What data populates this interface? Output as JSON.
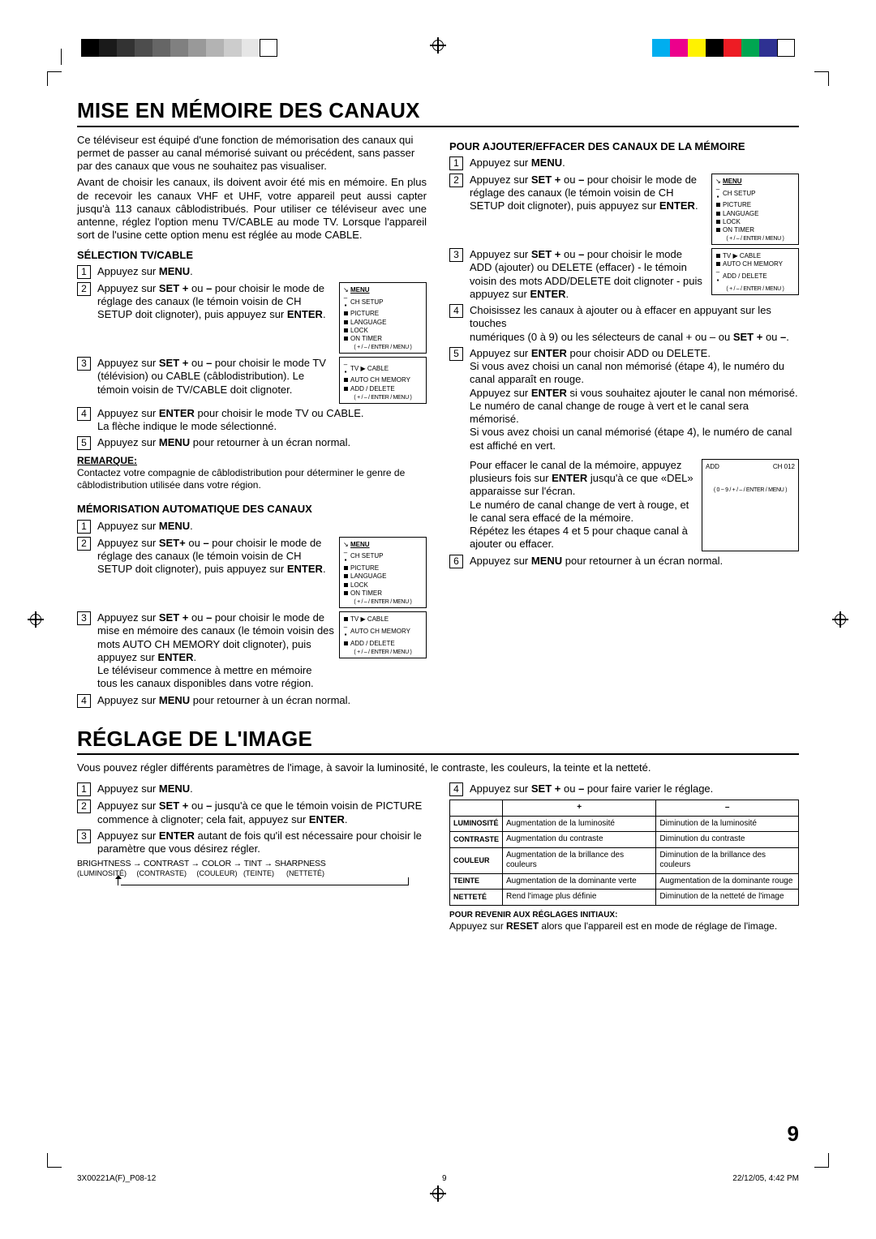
{
  "marks": {
    "grey_swatches": [
      "#000000",
      "#1a1a1a",
      "#333333",
      "#4d4d4d",
      "#666666",
      "#808080",
      "#999999",
      "#b3b3b3",
      "#cccccc",
      "#e6e6e6",
      "#ffffff"
    ],
    "color_swatches": [
      "#00aeef",
      "#ec008c",
      "#fff200",
      "#000000",
      "#ed1c24",
      "#00a651",
      "#2e3192",
      "#ffffff"
    ]
  },
  "section1": {
    "title": "MISE EN MÉMOIRE DES CANAUX",
    "intro": "Ce téléviseur est équipé d'une fonction de mémorisation des canaux qui permet de passer au canal mémorisé suivant ou précédent, sans passer par des canaux que vous ne souhaitez pas visualiser.",
    "intro2": "Avant de choisir les canaux, ils doivent avoir été mis en mémoire. En plus de recevoir les canaux VHF et UHF, votre appareil peut aussi capter jusqu'à 113 canaux câblodistribués. Pour utiliser ce téléviseur avec une antenne, réglez l'option menu TV/CABLE au mode TV. Lorsque l'appareil sort de l'usine cette option menu est réglée au mode CABLE.",
    "tvcable": {
      "heading": "SÉLECTION TV/CABLE",
      "s1": "Appuyez sur ",
      "s1b": "MENU",
      "s1c": ".",
      "s2a": "Appuyez sur ",
      "s2b": "SET +",
      "s2c": " ou ",
      "s2d": "–",
      "s2e": " pour choisir le mode de réglage des canaux (le témoin voisin de CH SETUP doit clignoter), puis appuyez sur ",
      "s2f": "ENTER",
      "s2g": ".",
      "s3a": "Appuyez sur ",
      "s3b": "SET +",
      "s3c": " ou ",
      "s3d": "–",
      "s3e": " pour choisir le mode TV (télévision) ou CABLE (câblodistribution). Le témoin voisin de TV/CABLE doit clignoter.",
      "s4a": "Appuyez sur ",
      "s4b": "ENTER",
      "s4c": " pour choisir le mode TV ou CABLE.",
      "s4d": "La flèche indique le mode sélectionné.",
      "s5a": "Appuyez sur ",
      "s5b": "MENU",
      "s5c": " pour retourner à un écran normal.",
      "note_label": "REMARQUE:",
      "note": "Contactez votre compagnie de câblodistribution pour déterminer le genre de câblodistribution utilisée dans votre région."
    },
    "menu1": {
      "title": "MENU",
      "items": [
        "CH SETUP",
        "PICTURE",
        "LANGUAGE",
        "LOCK",
        "ON TIMER"
      ],
      "foot": "( + / – / ENTER / MENU )"
    },
    "menu2": {
      "r1": "TV ▶ CABLE",
      "r2": "AUTO CH MEMORY",
      "r3": "ADD / DELETE",
      "foot": "( + / – / ENTER / MENU )"
    },
    "auto": {
      "heading": "MÉMORISATION AUTOMATIQUE DES CANAUX",
      "s1": "Appuyez sur ",
      "s1b": "MENU",
      "s1c": ".",
      "s2a": "Appuyez sur ",
      "s2b": "SET+",
      "s2c": " ou ",
      "s2d": "–",
      "s2e": " pour choisir le mode de réglage des canaux (le témoin voisin de CH SETUP doit clignoter), puis appuyez sur ",
      "s2f": "ENTER",
      "s2g": ".",
      "s3a": "Appuyez sur ",
      "s3b": "SET +",
      "s3c": " ou ",
      "s3d": "–",
      "s3e": " pour choisir le mode de mise en mémoire des canaux (le témoin voisin des mots AUTO CH MEMORY doit clignoter), puis appuyez sur ",
      "s3f": "ENTER",
      "s3g": ".",
      "s3h": "Le téléviseur commence à mettre en mémoire tous les canaux disponibles dans votre région.",
      "s4a": "Appuyez sur ",
      "s4b": "MENU",
      "s4c": " pour retourner à un écran normal."
    },
    "adddel": {
      "heading": "POUR AJOUTER/EFFACER DES CANAUX DE LA MÉMOIRE",
      "s1": "Appuyez sur ",
      "s1b": "MENU",
      "s1c": ".",
      "s2a": "Appuyez sur ",
      "s2b": "SET +",
      "s2c": " ou ",
      "s2d": "–",
      "s2e": " pour choisir le mode de réglage des canaux (le témoin voisin de CH SETUP doit clignoter), puis appuyez sur ",
      "s2f": "ENTER",
      "s2g": ".",
      "s3a": "Appuyez sur ",
      "s3b": "SET +",
      "s3c": " ou ",
      "s3d": "–",
      "s3e": " pour choisir le mode ADD (ajouter) ou DELETE (effacer) - le témoin voisin des mots ADD/DELETE doit clignoter - puis appuyez sur ",
      "s3f": "ENTER",
      "s3g": ".",
      "s4a": "Choisissez les canaux à ajouter ou à effacer en appuyant sur les touches",
      "s4b": "numériques (0 à 9) ou les sélecteurs de canal + ou – ou ",
      "s4c": "SET +",
      "s4d": " ou ",
      "s4e": "–",
      "s4f": ".",
      "s5a": "Appuyez sur ",
      "s5b": "ENTER",
      "s5c": " pour choisir ADD ou DELETE.",
      "s5d": "Si vous avez choisi un canal non mémorisé (étape 4), le numéro du canal apparaît en rouge.",
      "s5e": "Appuyez sur ",
      "s5f": "ENTER",
      "s5g": " si vous souhaitez ajouter le canal non mémorisé.",
      "s5h": "Le numéro de canal change de rouge à vert et le canal sera mémorisé.",
      "s5i": "Si vous avez choisi un canal mémorisé (étape 4), le numéro de canal est affiché en vert.",
      "s5j": "Pour effacer le canal de la mémoire, appuyez plusieurs fois sur ",
      "s5k": "ENTER",
      "s5l": " jusqu'à ce que «DEL» apparaisse sur l'écran.",
      "s5m": "Le numéro de canal change de vert à rouge, et le canal sera effacé de la mémoire.",
      "s5n": "Répétez les étapes 4 et 5 pour chaque canal à ajouter ou effacer.",
      "s6a": "Appuyez sur ",
      "s6b": "MENU",
      "s6c": " pour retourner à un écran normal.",
      "menu3_row1": "TV ▶ CABLE",
      "menu3_row2": "AUTO CH MEMORY",
      "menu3_row3": "ADD / DELETE",
      "menu3_foot": "( + / – / ENTER / MENU )",
      "menu4_add": "ADD",
      "menu4_ch": "CH 012",
      "menu4_foot": "( 0 ~ 9 / + / – / ENTER / MENU )"
    }
  },
  "section2": {
    "title": "RÉGLAGE DE L'IMAGE",
    "intro": "Vous pouvez régler différents paramètres de l'image, à savoir la luminosité, le contraste, les couleurs, la teinte et la netteté.",
    "left": {
      "s1": "Appuyez sur ",
      "s1b": "MENU",
      "s1c": ".",
      "s2a": "Appuyez sur ",
      "s2b": "SET +",
      "s2c": " ou ",
      "s2d": "–",
      "s2e": " jusqu'à ce que le témoin voisin de PICTURE commence à clignoter; cela fait, appuyez sur ",
      "s2f": "ENTER",
      "s2g": ".",
      "s3a": "Appuyez sur ",
      "s3b": "ENTER",
      "s3c": " autant de fois qu'il est nécessaire pour choisir le paramètre que vous désirez régler.",
      "seq": "BRIGHTNESS → CONTRAST → COLOR → TINT → SHARPNESS",
      "seq_sub": "(LUMINOSITÉ)     (CONTRASTE)     (COULEUR)   (TEINTE)      (NETTETÉ)"
    },
    "right": {
      "s4a": "Appuyez sur ",
      "s4b": "SET +",
      "s4c": " ou ",
      "s4d": "–",
      "s4e": " pour faire varier le réglage.",
      "table": {
        "headers": [
          "",
          "+",
          "–"
        ],
        "rows": [
          [
            "LUMINOSITÉ",
            "Augmentation de la luminosité",
            "Diminution de la luminosité"
          ],
          [
            "CONTRASTE",
            "Augmentation du contraste",
            "Diminution du contraste"
          ],
          [
            "COULEUR",
            "Augmentation de la brillance des couleurs",
            "Diminution de la brillance des couleurs"
          ],
          [
            "TEINTE",
            "Augmentation de la dominante verte",
            "Augmentation de la dominante rouge"
          ],
          [
            "NETTETÉ",
            "Rend l'image plus définie",
            "Diminution de la netteté de l'image"
          ]
        ]
      },
      "reset_label": "POUR REVENIR AUX RÉGLAGES INITIAUX:",
      "reset_text_a": "Appuyez sur ",
      "reset_text_b": "RESET",
      "reset_text_c": " alors que l'appareil est en mode de réglage de l'image."
    }
  },
  "page_number": "9",
  "footer": {
    "left": "3X00221A(F)_P08-12",
    "mid": "9",
    "right": "22/12/05, 4:42 PM"
  }
}
